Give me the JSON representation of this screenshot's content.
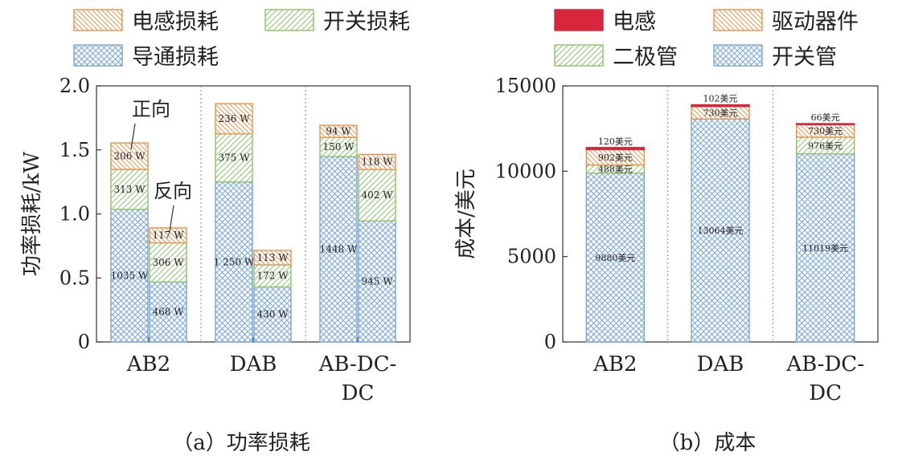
{
  "colors": {
    "conduction": "#7aa6dc",
    "inductor_loss": "#e8944e",
    "switching": "#8fc26a",
    "inductor_cost": "#d8263c",
    "driver": "#e8944e",
    "diode": "#8fc26a",
    "switch_tube": "#7aa6dc"
  },
  "chart_data": [
    {
      "type": "bar",
      "stacked": true,
      "caption": "（a）功率损耗",
      "ylabel": "功率损耗/kW",
      "ylim": [
        0,
        2.0
      ],
      "yticks": [
        "0",
        "0.5",
        "1.0",
        "1.5",
        "2.0"
      ],
      "categories": [
        "AB2",
        "DAB",
        "AB-DC-DC"
      ],
      "category_labels": [
        [
          "AB2"
        ],
        [
          "DAB"
        ],
        [
          "AB-DC-",
          "DC"
        ]
      ],
      "groups": [
        "正向",
        "反向"
      ],
      "annotations": [
        "正向",
        "反向"
      ],
      "legend": [
        "电感损耗",
        "开关损耗",
        "导通损耗"
      ],
      "bars": [
        {
          "category": "AB2",
          "direction": "正向",
          "segments": [
            {
              "series": "导通损耗",
              "value": 1.035,
              "label": "1035 W"
            },
            {
              "series": "开关损耗",
              "value": 0.313,
              "label": "313 W"
            },
            {
              "series": "电感损耗",
              "value": 0.206,
              "label": "206 W"
            }
          ]
        },
        {
          "category": "AB2",
          "direction": "反向",
          "segments": [
            {
              "series": "导通损耗",
              "value": 0.468,
              "label": "468 W"
            },
            {
              "series": "开关损耗",
              "value": 0.306,
              "label": "306 W"
            },
            {
              "series": "电感损耗",
              "value": 0.117,
              "label": "117 W"
            }
          ]
        },
        {
          "category": "DAB",
          "direction": "正向",
          "segments": [
            {
              "series": "导通损耗",
              "value": 1.25,
              "label": "1 250 W"
            },
            {
              "series": "开关损耗",
              "value": 0.375,
              "label": "375 W"
            },
            {
              "series": "电感损耗",
              "value": 0.236,
              "label": "236 W"
            }
          ]
        },
        {
          "category": "DAB",
          "direction": "反向",
          "segments": [
            {
              "series": "导通损耗",
              "value": 0.43,
              "label": "430 W"
            },
            {
              "series": "开关损耗",
              "value": 0.172,
              "label": "172 W"
            },
            {
              "series": "电感损耗",
              "value": 0.113,
              "label": "113 W"
            }
          ]
        },
        {
          "category": "AB-DC-DC",
          "direction": "正向",
          "segments": [
            {
              "series": "导通损耗",
              "value": 1.448,
              "label": "1448 W"
            },
            {
              "series": "开关损耗",
              "value": 0.15,
              "label": "150 W"
            },
            {
              "series": "电感损耗",
              "value": 0.094,
              "label": "94 W"
            }
          ]
        },
        {
          "category": "AB-DC-DC",
          "direction": "反向",
          "segments": [
            {
              "series": "导通损耗",
              "value": 0.945,
              "label": "945 W"
            },
            {
              "series": "开关损耗",
              "value": 0.402,
              "label": "402 W"
            },
            {
              "series": "电感损耗",
              "value": 0.118,
              "label": "118 W"
            }
          ]
        }
      ]
    },
    {
      "type": "bar",
      "stacked": true,
      "caption": "（b）成本",
      "ylabel": "成本/美元",
      "ylim": [
        0,
        15000
      ],
      "yticks": [
        "0",
        "5000",
        "10000",
        "15000"
      ],
      "categories": [
        "AB2",
        "DAB",
        "AB-DC-DC"
      ],
      "category_labels": [
        [
          "AB2"
        ],
        [
          "DAB"
        ],
        [
          "AB-DC-",
          "DC"
        ]
      ],
      "legend": [
        "电感",
        "驱动器件",
        "二极管",
        "开关管"
      ],
      "bars": [
        {
          "category": "AB2",
          "segments": [
            {
              "series": "开关管",
              "value": 9880,
              "label": "9880美元"
            },
            {
              "series": "二极管",
              "value": 488,
              "label": "488美元"
            },
            {
              "series": "驱动器件",
              "value": 902,
              "label": "902美元"
            },
            {
              "series": "电感",
              "value": 120,
              "label": "120美元"
            }
          ]
        },
        {
          "category": "DAB",
          "segments": [
            {
              "series": "开关管",
              "value": 13064,
              "label": "13064美元"
            },
            {
              "series": "二极管",
              "value": 0,
              "label": ""
            },
            {
              "series": "驱动器件",
              "value": 730,
              "label": "730美元"
            },
            {
              "series": "电感",
              "value": 102,
              "label": "102美元"
            }
          ]
        },
        {
          "category": "AB-DC-DC",
          "segments": [
            {
              "series": "开关管",
              "value": 11019,
              "label": "11019美元"
            },
            {
              "series": "二极管",
              "value": 976,
              "label": "976美元"
            },
            {
              "series": "驱动器件",
              "value": 730,
              "label": "730美元"
            },
            {
              "series": "电感",
              "value": 66,
              "label": "66美元"
            }
          ]
        }
      ]
    }
  ]
}
